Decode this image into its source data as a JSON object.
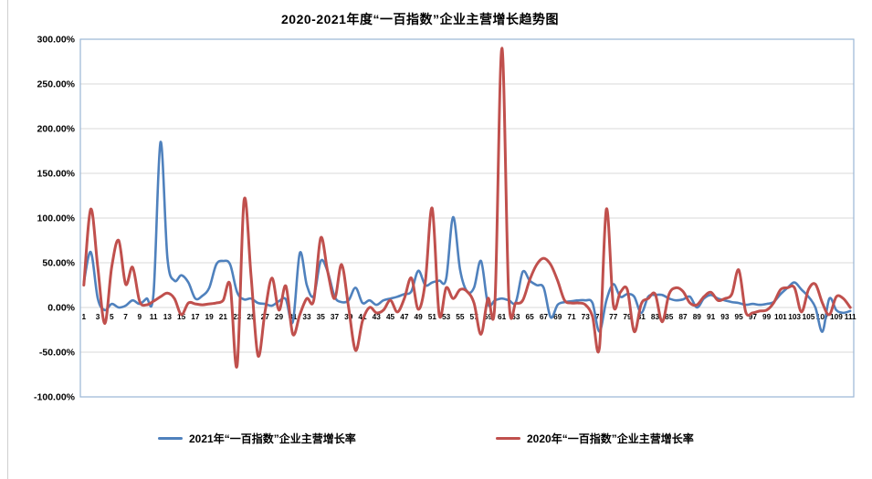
{
  "chart": {
    "title": "2020-2021年度“一百指数”企业主营增长趋势图",
    "plot": {
      "border_color": "#9ab6d4",
      "gridline_color": "#d9d9d9",
      "background": "#ffffff"
    },
    "y_axis": {
      "tick_labels": [
        "300.00%",
        "250.00%",
        "200.00%",
        "150.00%",
        "100.00%",
        "50.00%",
        "0.00%",
        "-50.00%",
        "-100.00%"
      ],
      "tick_values": [
        300,
        250,
        200,
        150,
        100,
        50,
        0,
        -50,
        -100
      ]
    },
    "x_axis": {
      "tick_labels": [
        "1",
        "3",
        "5",
        "7",
        "9",
        "11",
        "13",
        "15",
        "17",
        "19",
        "21",
        "23",
        "25",
        "27",
        "29",
        "31",
        "33",
        "35",
        "37",
        "39",
        "41",
        "43",
        "45",
        "47",
        "49",
        "51",
        "53",
        "55",
        "57",
        "59",
        "61",
        "63",
        "65",
        "67",
        "69",
        "71",
        "73",
        "75",
        "77",
        "79",
        "81",
        "83",
        "85",
        "87",
        "89",
        "91",
        "93",
        "95",
        "97",
        "99",
        "101",
        "103",
        "105",
        "107",
        "109",
        "111"
      ]
    },
    "legend": {
      "items": [
        {
          "label": "2021年“一百指数”企业主营增长率",
          "color": "#4f81bd"
        },
        {
          "label": "2020年“一百指数”企业主营增长率",
          "color": "#c0504d"
        }
      ]
    }
  },
  "chart_data": {
    "type": "line",
    "title": "2020-2021年度“一百指数”企业主营增长趋势图",
    "x_start": 1,
    "x_end": 111,
    "xlabel": "",
    "ylabel": "",
    "y_unit": "%",
    "ylim": [
      -100,
      300
    ],
    "y_step": 50,
    "grid": true,
    "legend_position": "bottom",
    "line_style": "smoothed",
    "series": [
      {
        "name": "2021年“一百指数”企业主营增长率",
        "color": "#4f81bd",
        "values": [
          28,
          62,
          10,
          -3,
          4,
          0,
          2,
          8,
          4,
          10,
          15,
          185,
          55,
          30,
          36,
          28,
          10,
          13,
          22,
          48,
          52,
          48,
          17,
          9,
          10,
          5,
          4,
          2,
          7,
          9,
          -16,
          61,
          25,
          13,
          52,
          40,
          12,
          6,
          8,
          22,
          5,
          8,
          3,
          8,
          10,
          12,
          15,
          18,
          41,
          25,
          28,
          30,
          32,
          101,
          42,
          18,
          22,
          52,
          4,
          8,
          10,
          8,
          6,
          40,
          30,
          25,
          22,
          -11,
          3,
          6,
          7,
          8,
          8,
          5,
          -27,
          8,
          26,
          12,
          15,
          12,
          -6,
          12,
          14,
          14,
          10,
          8,
          9,
          12,
          0,
          10,
          14,
          10,
          8,
          6,
          5,
          3,
          4,
          3,
          4,
          6,
          15,
          22,
          28,
          20,
          12,
          0,
          -27,
          10,
          -3,
          -6,
          -4
        ]
      },
      {
        "name": "2020年“一百指数”企业主营增长率",
        "color": "#c0504d",
        "values": [
          25,
          110,
          45,
          -18,
          45,
          75,
          26,
          45,
          7,
          3,
          7,
          12,
          16,
          10,
          -8,
          5,
          4,
          3,
          4,
          5,
          8,
          25,
          -65,
          120,
          35,
          -54,
          -5,
          33,
          -3,
          24,
          -30,
          -8,
          10,
          8,
          78,
          40,
          10,
          48,
          0,
          -48,
          -15,
          0,
          -6,
          -3,
          8,
          -5,
          10,
          33,
          -2,
          28,
          111,
          -8,
          22,
          10,
          20,
          18,
          5,
          -30,
          10,
          5,
          290,
          10,
          5,
          8,
          31,
          48,
          55,
          48,
          30,
          8,
          5,
          5,
          3,
          -10,
          -45,
          110,
          3,
          17,
          20,
          -27,
          4,
          10,
          15,
          -16,
          15,
          22,
          18,
          5,
          3,
          12,
          17,
          8,
          10,
          15,
          42,
          -5,
          -6,
          -4,
          -3,
          5,
          20,
          22,
          22,
          -5,
          20,
          26,
          5,
          -8,
          12,
          10,
          0
        ]
      }
    ]
  }
}
